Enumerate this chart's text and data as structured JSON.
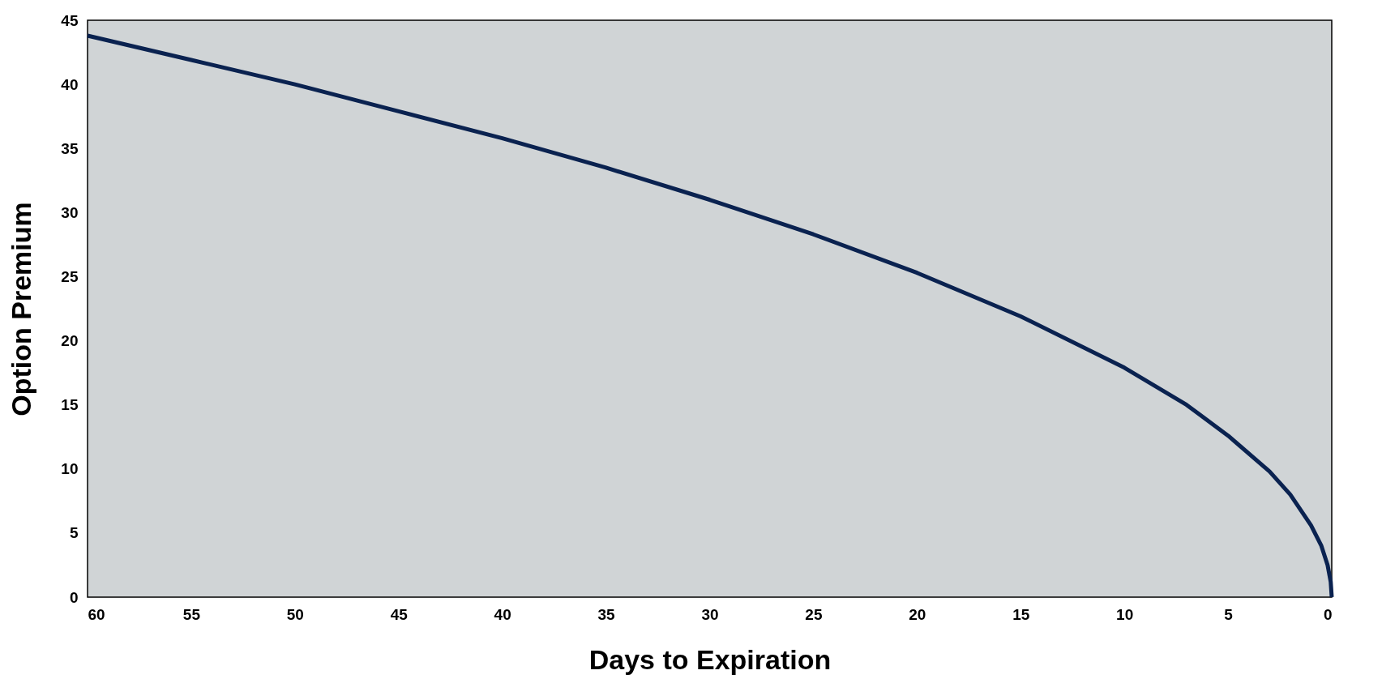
{
  "chart_data": {
    "type": "line",
    "xlabel": "Days to Expiration",
    "ylabel": "Option Premium",
    "x": [
      60,
      55,
      50,
      45,
      40,
      35,
      30,
      25,
      20,
      15,
      10,
      7,
      5,
      3,
      2,
      1,
      0.5,
      0.2,
      0.05,
      0
    ],
    "series": [
      {
        "color": "#0a2250",
        "values": [
          43.8,
          41.9,
          40.0,
          37.9,
          35.8,
          33.5,
          31.0,
          28.3,
          25.3,
          21.9,
          17.9,
          15.0,
          12.6,
          9.8,
          8.0,
          5.6,
          4.0,
          2.5,
          1.2,
          0
        ]
      }
    ],
    "xlim": [
      60,
      0
    ],
    "xticks": [
      60,
      55,
      50,
      45,
      40,
      35,
      30,
      25,
      20,
      15,
      10,
      5,
      0
    ],
    "ylim": [
      0,
      45
    ],
    "yticks": [
      0,
      5,
      10,
      15,
      20,
      25,
      30,
      35,
      40,
      45
    ],
    "grid": false,
    "legend": false,
    "marker": "none",
    "line_style": "solid"
  }
}
